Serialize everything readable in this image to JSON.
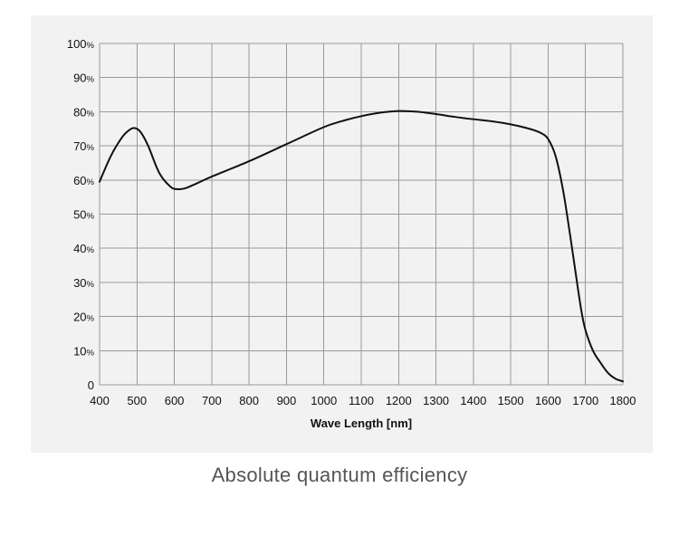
{
  "colors": {
    "panel_background": "#f2f2f2",
    "grid": "#9a9a9a",
    "curve": "#111111",
    "caption": "#555555"
  },
  "caption": "Absolute quantum efficiency",
  "chart_data": {
    "type": "line",
    "title": "Absolute quantum efficiency",
    "xlabel": "Wave Length [nm]",
    "ylabel": "",
    "xlim": [
      400,
      1800
    ],
    "ylim": [
      0,
      100
    ],
    "grid": true,
    "x_ticks": [
      400,
      500,
      600,
      700,
      800,
      900,
      1000,
      1100,
      1200,
      1300,
      1400,
      1500,
      1600,
      1700,
      1800
    ],
    "x_tick_labels": [
      "400",
      "500",
      "600",
      "700",
      "800",
      "900",
      "1000",
      "1100",
      "1200",
      "1300",
      "1400",
      "1500",
      "1600",
      "1700",
      "1800"
    ],
    "y_ticks": [
      0,
      10,
      20,
      30,
      40,
      50,
      60,
      70,
      80,
      90,
      100
    ],
    "y_tick_labels": [
      {
        "num": "0",
        "unit": ""
      },
      {
        "num": "10",
        "unit": "%"
      },
      {
        "num": "20",
        "unit": "%"
      },
      {
        "num": "30",
        "unit": "%"
      },
      {
        "num": "40",
        "unit": "%"
      },
      {
        "num": "50",
        "unit": "%"
      },
      {
        "num": "60",
        "unit": "%"
      },
      {
        "num": "70",
        "unit": "%"
      },
      {
        "num": "80",
        "unit": "%"
      },
      {
        "num": "90",
        "unit": "%"
      },
      {
        "num": "100",
        "unit": "%"
      }
    ],
    "series": [
      {
        "name": "Absolute quantum efficiency",
        "x": [
          400,
          430,
          460,
          480,
          495,
          510,
          530,
          560,
          590,
          610,
          630,
          660,
          700,
          800,
          900,
          1000,
          1050,
          1100,
          1150,
          1200,
          1250,
          1300,
          1350,
          1400,
          1450,
          1500,
          1550,
          1580,
          1600,
          1620,
          1640,
          1660,
          1680,
          1690,
          1700,
          1720,
          1740,
          1760,
          1780,
          1800
        ],
        "y": [
          59.5,
          67,
          72.5,
          74.7,
          75.2,
          74,
          70,
          62,
          58,
          57.3,
          57.6,
          59,
          61,
          65.5,
          70.5,
          75.5,
          77.3,
          78.7,
          79.7,
          80.2,
          80,
          79.3,
          78.5,
          77.8,
          77.2,
          76.3,
          75,
          73.8,
          72,
          67,
          57,
          43,
          28,
          21,
          16,
          10,
          6.5,
          3.5,
          1.8,
          1
        ]
      }
    ]
  }
}
